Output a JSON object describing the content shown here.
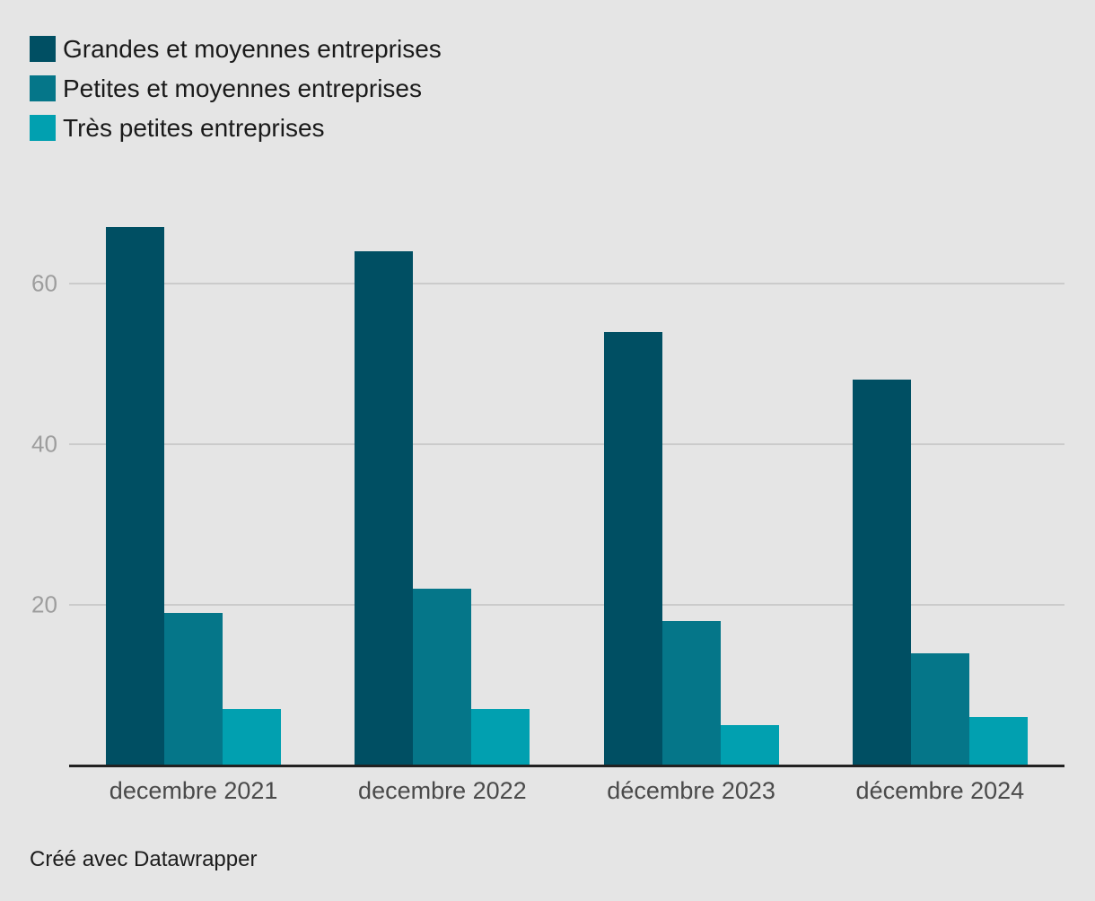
{
  "background": "#e5e5e5",
  "legend": {
    "items": [
      {
        "label": "Grandes et moyennes entreprises",
        "color": "#004f63"
      },
      {
        "label": "Petites et moyennes entreprises",
        "color": "#057689"
      },
      {
        "label": "Très petites entreprises",
        "color": "#01a0b0"
      }
    ]
  },
  "chart_data": {
    "type": "bar",
    "title": "",
    "xlabel": "",
    "ylabel": "",
    "categories": [
      "decembre 2021",
      "decembre 2022",
      "décembre 2023",
      "décembre 2024"
    ],
    "series": [
      {
        "name": "Grandes et moyennes entreprises",
        "color": "#004f63",
        "values": [
          67,
          64,
          54,
          48
        ]
      },
      {
        "name": "Petites et moyennes entreprises",
        "color": "#057689",
        "values": [
          19,
          22,
          18,
          14
        ]
      },
      {
        "name": "Très petites entreprises",
        "color": "#01a0b0",
        "values": [
          7,
          7,
          5,
          6
        ]
      }
    ],
    "yticks": [
      20,
      40,
      60
    ],
    "ylim": [
      0,
      67
    ],
    "grid": "horizontal-only",
    "legend_position": "top-left",
    "colors": {
      "gridline": "#cbcbcb",
      "axis_line": "#212121",
      "tick_label": "#9d9d9d",
      "category_label": "#4a4a4a"
    }
  },
  "footer": {
    "text": "Créé avec Datawrapper"
  }
}
